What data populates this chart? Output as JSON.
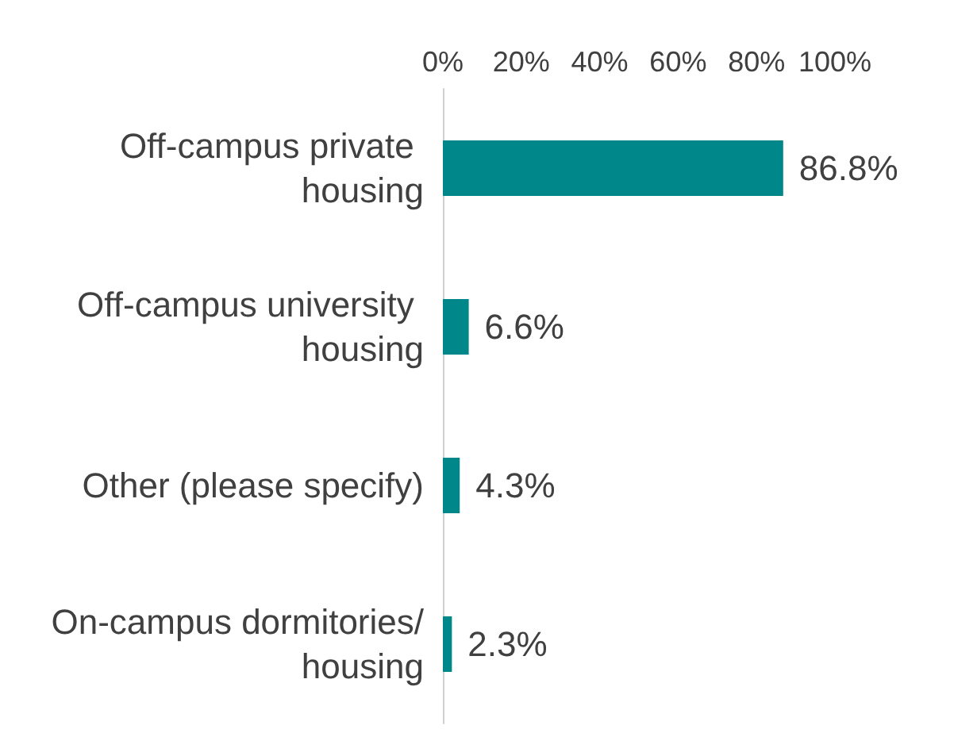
{
  "chart_data": {
    "type": "bar",
    "orientation": "horizontal",
    "categories": [
      "Off-campus private housing",
      "Off-campus university housing",
      "Other (please specify)",
      "On-campus dormitories/housing"
    ],
    "values": [
      86.8,
      6.6,
      4.3,
      2.3
    ],
    "value_labels": [
      "86.8%",
      "6.6%",
      "4.3%",
      "2.3%"
    ],
    "color": "#00878a",
    "xlim": [
      0,
      100
    ],
    "xticks": [
      {
        "value": 0,
        "label": "0%"
      },
      {
        "value": 20,
        "label": "20%"
      },
      {
        "value": 40,
        "label": "40%"
      },
      {
        "value": 60,
        "label": "60%"
      },
      {
        "value": 80,
        "label": "80%"
      },
      {
        "value": 100,
        "label": "100%"
      }
    ],
    "grid": false
  }
}
